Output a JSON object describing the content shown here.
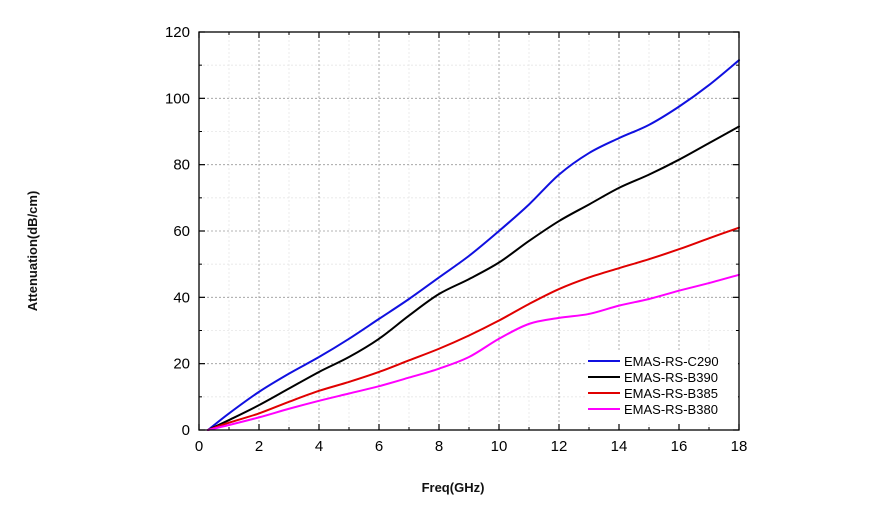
{
  "chart_data": {
    "type": "line",
    "title": "",
    "xlabel": "Freq(GHz)",
    "ylabel": "Attenuation(dB/cm)",
    "xlim": [
      0,
      18
    ],
    "ylim": [
      0,
      120
    ],
    "xticks": [
      "0",
      "2",
      "4",
      "6",
      "8",
      "10",
      "12",
      "14",
      "16",
      "18"
    ],
    "yticks": [
      "0",
      "20",
      "40",
      "60",
      "80",
      "100",
      "120"
    ],
    "grid": true,
    "legend_position": "bottom-right",
    "x": [
      0.3,
      1,
      2,
      3,
      4,
      5,
      6,
      7,
      8,
      9,
      10,
      11,
      12,
      13,
      14,
      15,
      16,
      17,
      18
    ],
    "series": [
      {
        "name": "EMAS-RS-C290",
        "color": "#1010e0",
        "values": [
          0,
          5,
          11.5,
          17,
          22,
          27.5,
          33.5,
          39.5,
          46,
          52.5,
          60,
          68,
          77,
          83.5,
          88,
          92,
          97.5,
          104,
          111.5
        ]
      },
      {
        "name": "EMAS-RS-B390",
        "color": "#000000",
        "values": [
          0,
          3,
          7.5,
          12.5,
          17.5,
          22,
          27.5,
          34.5,
          41,
          45.5,
          50.5,
          57,
          63,
          68,
          73,
          77,
          81.5,
          86.5,
          91.5
        ]
      },
      {
        "name": "EMAS-RS-B385",
        "color": "#e00000",
        "values": [
          0,
          2.2,
          5,
          8.5,
          11.8,
          14.5,
          17.5,
          21,
          24.5,
          28.5,
          33,
          38,
          42.5,
          46,
          48.8,
          51.5,
          54.5,
          57.8,
          61
        ]
      },
      {
        "name": "EMAS-RS-B380",
        "color": "#ff00ff",
        "values": [
          0,
          1.5,
          3.8,
          6.4,
          8.8,
          11,
          13.2,
          15.8,
          18.5,
          22,
          27.5,
          32,
          33.8,
          35,
          37.5,
          39.5,
          42,
          44.3,
          46.8
        ]
      }
    ]
  }
}
